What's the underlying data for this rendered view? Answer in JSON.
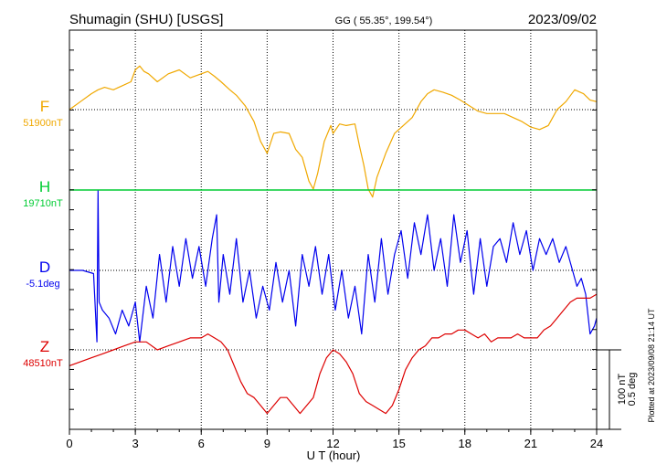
{
  "header": {
    "station": "Shumagin (SHU)  [USGS]",
    "coords": "GG ( 55.35°, 199.54°)",
    "date": "2023/09/02"
  },
  "footer": {
    "plotted": "Plotted at 2023/09/08 21:14 UT"
  },
  "scale": {
    "nt": "100 nT",
    "deg": "0.5 deg"
  },
  "colors": {
    "F": "#f0a800",
    "H": "#00cc33",
    "D": "#0000ee",
    "Z": "#dd0000"
  },
  "chart_data": {
    "type": "line",
    "xlabel": "U T (hour)",
    "xlim": [
      0,
      24
    ],
    "xticks": [
      0,
      3,
      6,
      9,
      12,
      15,
      18,
      21,
      24
    ],
    "grid": true,
    "series": [
      {
        "key": "F",
        "name": "F",
        "baseline_label": "51900nT",
        "baseline": 51900,
        "unit": "nT",
        "x": [
          0,
          0.5,
          1,
          1.3,
          1.6,
          2,
          2.4,
          2.8,
          3.0,
          3.2,
          3.4,
          3.6,
          4,
          4.5,
          5,
          5.5,
          6,
          6.3,
          6.6,
          6.9,
          7.3,
          7.6,
          8,
          8.4,
          8.7,
          9,
          9.3,
          9.6,
          10,
          10.3,
          10.6,
          10.9,
          11.1,
          11.3,
          11.6,
          11.9,
          12,
          12.3,
          12.6,
          13,
          13.2,
          13.4,
          13.6,
          13.8,
          14,
          14.4,
          14.8,
          15.2,
          15.6,
          16,
          16.3,
          16.6,
          17,
          17.4,
          17.8,
          18.2,
          18.6,
          19,
          19.4,
          19.8,
          20.2,
          20.6,
          21,
          21.4,
          21.8,
          22.2,
          22.6,
          23,
          23.4,
          23.7,
          24
        ],
        "y": [
          51900,
          51910,
          51920,
          51925,
          51928,
          51925,
          51930,
          51935,
          51950,
          51955,
          51948,
          51945,
          51935,
          51945,
          51950,
          51940,
          51945,
          51948,
          51942,
          51935,
          51925,
          51918,
          51905,
          51885,
          51860,
          51845,
          51870,
          51872,
          51870,
          51850,
          51840,
          51810,
          51800,
          51820,
          51860,
          51880,
          51870,
          51882,
          51880,
          51882,
          51855,
          51830,
          51800,
          51790,
          51815,
          51845,
          51870,
          51880,
          51890,
          51910,
          51920,
          51925,
          51922,
          51918,
          51912,
          51905,
          51898,
          51895,
          51895,
          51895,
          51890,
          51885,
          51878,
          51875,
          51880,
          51900,
          51910,
          51925,
          51920,
          51912,
          51910
        ]
      },
      {
        "key": "H",
        "name": "H",
        "baseline_label": "19710nT",
        "baseline": 19710,
        "unit": "nT",
        "x": [
          0,
          24
        ],
        "y": [
          19710,
          19710
        ]
      },
      {
        "key": "D",
        "name": "D",
        "baseline_label": "-5.1deg",
        "baseline": -5.1,
        "unit": "deg",
        "x": [
          0,
          0.6,
          1.1,
          1.25,
          1.3,
          1.35,
          1.5,
          1.8,
          2.1,
          2.4,
          2.7,
          3.0,
          3.2,
          3.5,
          3.8,
          4.1,
          4.4,
          4.7,
          5.0,
          5.3,
          5.6,
          5.9,
          6.2,
          6.5,
          6.7,
          6.8,
          7.0,
          7.3,
          7.6,
          7.9,
          8.2,
          8.5,
          8.8,
          9.1,
          9.4,
          9.7,
          10.0,
          10.3,
          10.6,
          10.9,
          11.2,
          11.5,
          11.8,
          12.1,
          12.4,
          12.7,
          13.0,
          13.3,
          13.6,
          13.9,
          14.2,
          14.5,
          14.8,
          15.1,
          15.4,
          15.7,
          16.0,
          16.3,
          16.6,
          16.9,
          17.2,
          17.5,
          17.8,
          18.1,
          18.4,
          18.7,
          19.0,
          19.3,
          19.6,
          19.9,
          20.2,
          20.5,
          20.8,
          21.1,
          21.4,
          21.7,
          22.0,
          22.3,
          22.6,
          22.9,
          23.1,
          23.3,
          23.5,
          23.7,
          23.9,
          24
        ],
        "y": [
          -5.1,
          -5.1,
          -5.12,
          -5.55,
          -4.6,
          -5.3,
          -5.35,
          -5.4,
          -5.5,
          -5.35,
          -5.45,
          -5.3,
          -5.55,
          -5.2,
          -5.4,
          -5.0,
          -5.3,
          -4.95,
          -5.2,
          -4.9,
          -5.15,
          -4.95,
          -5.2,
          -4.9,
          -4.75,
          -5.3,
          -5.0,
          -5.25,
          -4.9,
          -5.3,
          -5.1,
          -5.4,
          -5.2,
          -5.35,
          -5.05,
          -5.3,
          -5.1,
          -5.45,
          -5.0,
          -5.2,
          -4.95,
          -5.25,
          -5.0,
          -5.35,
          -5.1,
          -5.4,
          -5.2,
          -5.5,
          -5.0,
          -5.3,
          -4.9,
          -5.25,
          -5.0,
          -4.85,
          -5.15,
          -4.8,
          -5.0,
          -4.75,
          -5.1,
          -4.9,
          -5.2,
          -4.75,
          -5.05,
          -4.85,
          -5.25,
          -4.9,
          -5.2,
          -4.95,
          -4.9,
          -5.05,
          -4.8,
          -5.0,
          -4.85,
          -5.1,
          -4.9,
          -5.0,
          -4.9,
          -5.05,
          -4.95,
          -5.1,
          -5.2,
          -5.15,
          -5.25,
          -5.5,
          -5.45,
          -5.4
        ]
      },
      {
        "key": "Z",
        "name": "Z",
        "baseline_label": "48510nT",
        "baseline": 48510,
        "unit": "nT",
        "x": [
          0,
          0.5,
          1,
          1.5,
          2,
          2.5,
          3,
          3.5,
          4,
          4.5,
          5,
          5.5,
          6,
          6.3,
          6.6,
          6.9,
          7.2,
          7.5,
          7.8,
          8.1,
          8.4,
          8.7,
          9,
          9.3,
          9.6,
          9.9,
          10.2,
          10.5,
          10.8,
          11.1,
          11.4,
          11.7,
          12,
          12.3,
          12.6,
          12.9,
          13.2,
          13.5,
          13.8,
          14.1,
          14.4,
          14.7,
          15,
          15.3,
          15.6,
          15.9,
          16.2,
          16.5,
          16.8,
          17.1,
          17.4,
          17.7,
          18,
          18.3,
          18.6,
          18.9,
          19.2,
          19.5,
          19.8,
          20.1,
          20.4,
          20.7,
          21,
          21.3,
          21.6,
          21.9,
          22.2,
          22.5,
          22.8,
          23.1,
          23.4,
          23.7,
          24
        ],
        "y": [
          48490,
          48495,
          48500,
          48505,
          48510,
          48515,
          48520,
          48520,
          48510,
          48515,
          48520,
          48525,
          48525,
          48530,
          48525,
          48520,
          48510,
          48490,
          48470,
          48455,
          48450,
          48440,
          48430,
          48440,
          48450,
          48450,
          48440,
          48430,
          48440,
          48450,
          48480,
          48500,
          48510,
          48505,
          48495,
          48480,
          48455,
          48445,
          48440,
          48435,
          48430,
          48440,
          48460,
          48485,
          48500,
          48510,
          48515,
          48525,
          48525,
          48530,
          48530,
          48535,
          48535,
          48530,
          48525,
          48530,
          48520,
          48525,
          48525,
          48525,
          48530,
          48525,
          48525,
          48525,
          48535,
          48540,
          48550,
          48560,
          48570,
          48575,
          48575,
          48575,
          48580
        ]
      }
    ]
  }
}
